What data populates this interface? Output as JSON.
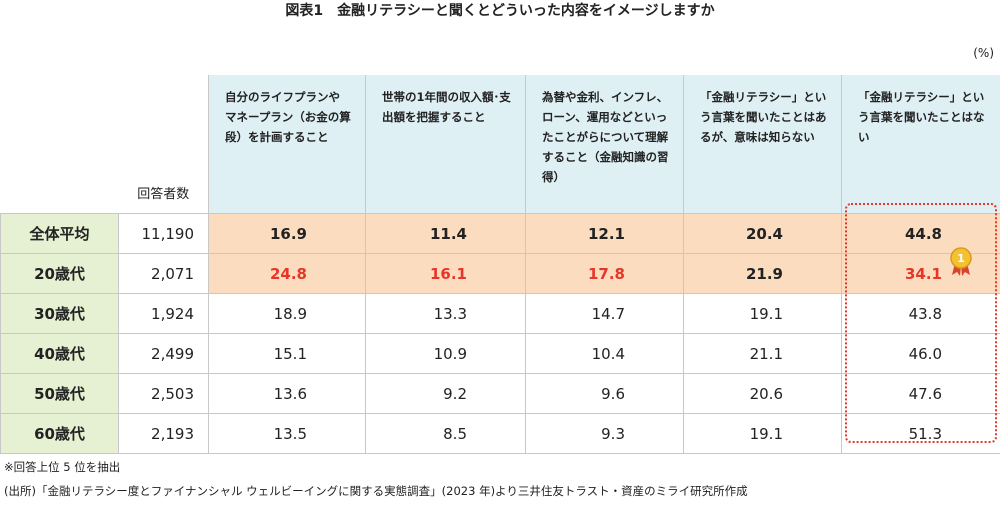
{
  "title": "図表1　金融リテラシーと聞くとどういった内容をイメージしますか",
  "unit": "(%)",
  "table": {
    "header": [
      "回答者数",
      "自分のライフプランやマネープラン（お金の算段）を計画すること",
      "世帯の1年間の収入額･支出額を把握すること",
      "為替や金利、インフレ、ローン、運用などといったことがらについて理解すること（金融知識の習得）",
      "「金融リテラシー」という言葉を聞いたことはあるが、意味は知らない",
      "「金融リテラシー」という言葉を聞いたことはない"
    ],
    "rows": [
      [
        "全体平均",
        "11,190",
        "16.9",
        "11.4",
        "12.1",
        "20.4",
        "44.8"
      ],
      [
        "20歳代",
        "2,071",
        "24.8",
        "16.1",
        "17.8",
        "21.9",
        "34.1"
      ],
      [
        "30歳代",
        "1,924",
        "18.9",
        "13.3",
        "14.7",
        "19.1",
        "43.8"
      ],
      [
        "40歳代",
        "2,499",
        "15.1",
        "10.9",
        "10.4",
        "21.1",
        "46.0"
      ],
      [
        "50歳代",
        "2,503",
        "13.6",
        "9.2",
        "9.6",
        "20.6",
        "47.6"
      ],
      [
        "60歳代",
        "2,193",
        "13.5",
        "8.5",
        "9.3",
        "19.1",
        "51.3"
      ]
    ]
  },
  "notes": [
    "※回答上位 5 位を抽出",
    "(出所)「金融リテラシー度とファイナンシャル ウェルビーイングに関する実態調査」(2023 年)より三井住友トラスト・資産のミライ研究所作成"
  ]
}
